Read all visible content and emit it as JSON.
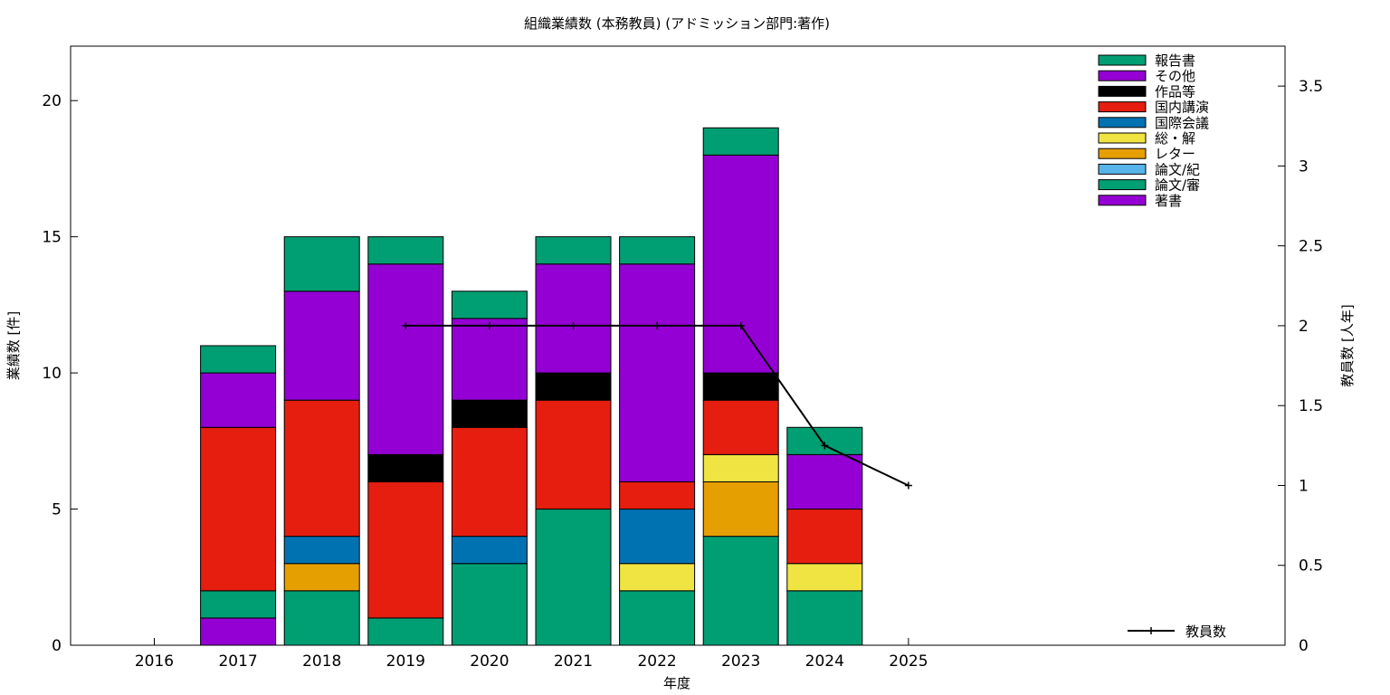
{
  "chart_data": {
    "type": "bar",
    "stacked": true,
    "title": "組織業績数 (本務教員) (アドミッション部門:著作)",
    "xlabel": "年度",
    "ylabel": "業績数 [件]",
    "y2label": "教員数 [人年]",
    "categories": [
      "2016",
      "2017",
      "2018",
      "2019",
      "2020",
      "2021",
      "2022",
      "2023",
      "2024",
      "2025"
    ],
    "ylim": [
      0,
      22
    ],
    "y2lim": [
      0,
      3.75
    ],
    "yticks": [
      "0",
      "5",
      "10",
      "15",
      "20"
    ],
    "y2ticks": [
      "0",
      "0.5",
      "1",
      "1.5",
      "2",
      "2.5",
      "3",
      "3.5"
    ],
    "legend_position": "top-right",
    "series": [
      {
        "name": "著書",
        "color": "#9400d3",
        "values": [
          0,
          1,
          0,
          0,
          0,
          0,
          0,
          0,
          0,
          0
        ]
      },
      {
        "name": "論文/審",
        "color": "#009e73",
        "values": [
          0,
          1,
          2,
          1,
          3,
          5,
          2,
          4,
          2,
          0
        ]
      },
      {
        "name": "論文/紀",
        "color": "#56b4e9",
        "values": [
          0,
          0,
          0,
          0,
          0,
          0,
          0,
          0,
          0,
          0
        ]
      },
      {
        "name": "レター",
        "color": "#e69f00",
        "values": [
          0,
          0,
          1,
          0,
          0,
          0,
          0,
          2,
          0,
          0
        ]
      },
      {
        "name": "総・解",
        "color": "#f0e442",
        "values": [
          0,
          0,
          0,
          0,
          0,
          0,
          1,
          1,
          1,
          0
        ]
      },
      {
        "name": "国際会議",
        "color": "#0072b2",
        "values": [
          0,
          0,
          1,
          0,
          1,
          0,
          2,
          0,
          0,
          0
        ]
      },
      {
        "name": "国内講演",
        "color": "#e51e10",
        "values": [
          0,
          6,
          5,
          5,
          4,
          4,
          1,
          2,
          2,
          0
        ]
      },
      {
        "name": "作品等",
        "color": "#000000",
        "values": [
          0,
          0,
          0,
          1,
          1,
          1,
          0,
          1,
          0,
          0
        ]
      },
      {
        "name": "その他",
        "color": "#9400d3",
        "values": [
          0,
          2,
          4,
          7,
          3,
          4,
          8,
          8,
          2,
          0
        ]
      },
      {
        "name": "報告書",
        "color": "#009e73",
        "values": [
          0,
          1,
          2,
          1,
          1,
          1,
          1,
          1,
          1,
          0
        ]
      }
    ],
    "line_series": {
      "name": "教員数",
      "color": "#000000",
      "axis": "y2",
      "categories": [
        "2019",
        "2020",
        "2021",
        "2022",
        "2023",
        "2024",
        "2025"
      ],
      "values": [
        2,
        2,
        2,
        2,
        2,
        1.25,
        1
      ]
    }
  }
}
